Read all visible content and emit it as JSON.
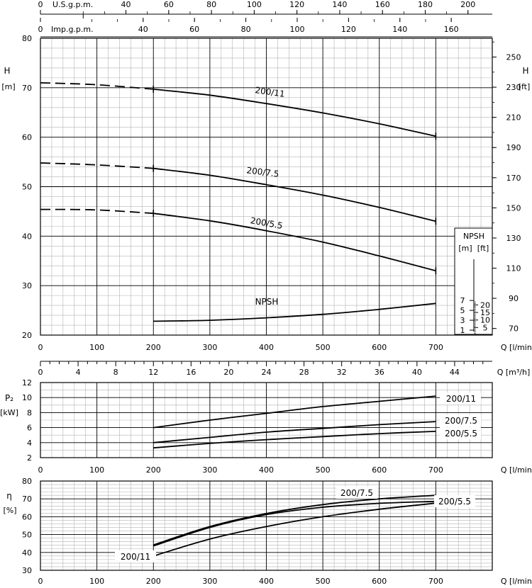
{
  "chart_data": [
    {
      "id": "head",
      "type": "line",
      "xlabel": "Q [l/min]",
      "ylabel": "H [m]",
      "y2label": "H [ft]",
      "xlim": [
        0,
        800
      ],
      "ylim": [
        20,
        80
      ],
      "x_ticks": [
        0,
        100,
        200,
        300,
        400,
        500,
        600,
        700
      ],
      "y_ticks": [
        20,
        30,
        40,
        50,
        60,
        70,
        80
      ],
      "ft_ticks": [
        70,
        90,
        110,
        130,
        150,
        170,
        190,
        210,
        230,
        250
      ],
      "usgpm_label": "U.S.g.p.m.",
      "usgpm_ticks": [
        0,
        40,
        60,
        80,
        100,
        120,
        140,
        160,
        180,
        200
      ],
      "impgpm_label": "Imp.g.p.m.",
      "impgpm_ticks": [
        0,
        40,
        60,
        80,
        100,
        120,
        140,
        160
      ],
      "series": [
        {
          "name": "200/11",
          "dashed_x": [
            0,
            100,
            200
          ],
          "dashed_y": [
            71.0,
            70.6,
            69.7
          ],
          "x": [
            200,
            300,
            400,
            500,
            600,
            700
          ],
          "y": [
            69.7,
            68.5,
            66.8,
            64.9,
            62.7,
            60.2
          ]
        },
        {
          "name": "200/7.5",
          "dashed_x": [
            0,
            100,
            200
          ],
          "dashed_y": [
            54.8,
            54.4,
            53.7
          ],
          "x": [
            200,
            300,
            400,
            500,
            600,
            700
          ],
          "y": [
            53.7,
            52.3,
            50.4,
            48.3,
            45.8,
            43.0
          ]
        },
        {
          "name": "200/5.5",
          "dashed_x": [
            0,
            100,
            200
          ],
          "dashed_y": [
            45.4,
            45.3,
            44.6
          ],
          "x": [
            200,
            300,
            400,
            500,
            600,
            700
          ],
          "y": [
            44.6,
            43.1,
            41.1,
            38.8,
            36.0,
            33.0
          ]
        },
        {
          "name": "NPSH",
          "x": [
            200,
            300,
            400,
            500,
            600,
            700
          ],
          "y": [
            22.8,
            23.0,
            23.5,
            24.2,
            25.2,
            26.4
          ]
        }
      ],
      "npsh_box": {
        "title": "NPSH",
        "unit_m": "[m]",
        "unit_ft": "[ft]",
        "m_ticks": [
          1,
          3,
          5,
          7
        ],
        "ft_ticks": [
          5,
          10,
          15,
          20
        ]
      }
    },
    {
      "id": "flow-m3h",
      "type": "axis",
      "xlabel": "Q [m³/h]",
      "ticks": [
        0,
        4,
        8,
        12,
        16,
        20,
        24,
        28,
        32,
        36,
        40,
        44
      ]
    },
    {
      "id": "power",
      "type": "line",
      "xlabel": "Q [l/min]",
      "ylabel": "P2 [kW]",
      "xlim": [
        0,
        800
      ],
      "ylim": [
        2,
        12
      ],
      "x_ticks": [
        0,
        100,
        200,
        300,
        400,
        500,
        600,
        700
      ],
      "y_ticks": [
        2,
        4,
        6,
        8,
        10,
        12
      ],
      "series": [
        {
          "name": "200/11",
          "x": [
            200,
            300,
            400,
            500,
            600,
            700
          ],
          "y": [
            6.0,
            7.0,
            7.9,
            8.8,
            9.5,
            10.2
          ]
        },
        {
          "name": "200/7.5",
          "x": [
            200,
            300,
            400,
            500,
            600,
            700
          ],
          "y": [
            4.0,
            4.7,
            5.4,
            5.9,
            6.4,
            6.8
          ]
        },
        {
          "name": "200/5.5",
          "x": [
            200,
            300,
            400,
            500,
            600,
            700
          ],
          "y": [
            3.3,
            3.9,
            4.4,
            4.8,
            5.2,
            5.5
          ]
        }
      ]
    },
    {
      "id": "efficiency",
      "type": "line",
      "xlabel": "Q [l/min]",
      "ylabel": "η [%]",
      "xlim": [
        0,
        800
      ],
      "ylim": [
        30,
        80
      ],
      "x_ticks": [
        0,
        100,
        200,
        300,
        400,
        500,
        600,
        700
      ],
      "y_ticks": [
        30,
        40,
        50,
        60,
        70,
        80
      ],
      "series": [
        {
          "name": "200/7.5",
          "x": [
            200,
            300,
            400,
            500,
            600,
            700
          ],
          "y": [
            44.2,
            54.5,
            61.8,
            66.8,
            70.0,
            72.0
          ]
        },
        {
          "name": "200/5.5",
          "x": [
            200,
            300,
            400,
            500,
            600,
            700
          ],
          "y": [
            43.6,
            54.0,
            61.2,
            65.3,
            67.5,
            68.6
          ]
        },
        {
          "name": "200/11",
          "x": [
            200,
            300,
            400,
            500,
            600,
            700
          ],
          "y": [
            38.0,
            47.5,
            54.5,
            60.0,
            64.2,
            67.6
          ]
        }
      ]
    }
  ]
}
